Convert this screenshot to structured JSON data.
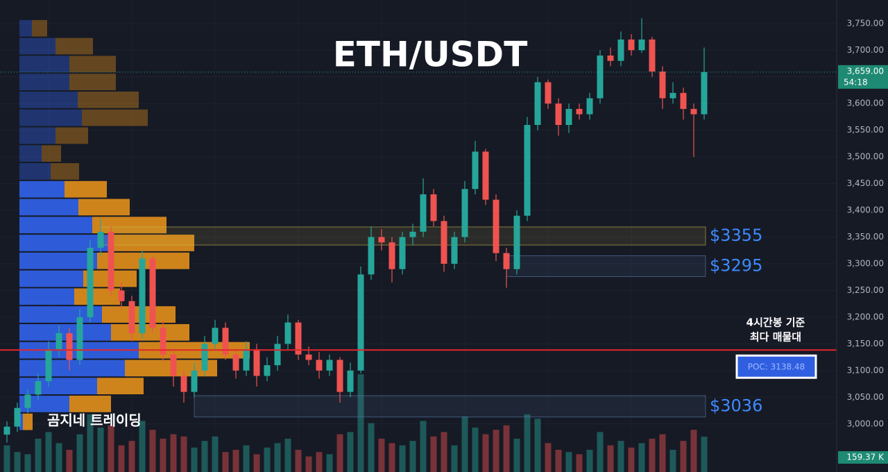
{
  "chart_data": {
    "type": "candlestick",
    "title": "ETH/USDT",
    "watermark": "곰지네 트레이딩",
    "annotation": [
      "4시간봉 기준",
      "최다 매물대"
    ],
    "ylim": [
      2910,
      3794
    ],
    "yticks": [
      {
        "value": 3000,
        "label": "3,000.00"
      },
      {
        "value": 3050,
        "label": "3,050.00"
      },
      {
        "value": 3100,
        "label": "3,100.00"
      },
      {
        "value": 3150,
        "label": "3,150.00"
      },
      {
        "value": 3200,
        "label": "3,200.00"
      },
      {
        "value": 3250,
        "label": "3,250.00"
      },
      {
        "value": 3300,
        "label": "3,300.00"
      },
      {
        "value": 3350,
        "label": "3,350.00"
      },
      {
        "value": 3400,
        "label": "3,400.00"
      },
      {
        "value": 3450,
        "label": "3,450.00"
      },
      {
        "value": 3500,
        "label": "3,500.00"
      },
      {
        "value": 3550,
        "label": "3,550.00"
      },
      {
        "value": 3600,
        "label": "3,600.00"
      },
      {
        "value": 3650,
        "label": "3,650.00"
      },
      {
        "value": 3700,
        "label": "3,700.00"
      },
      {
        "value": 3750,
        "label": "3,750.00"
      }
    ],
    "grid": true,
    "up_color": "#26a69a",
    "down_color": "#ef5350",
    "candles": [
      [
        2980,
        3005,
        2965,
        2995
      ],
      [
        2995,
        3040,
        2985,
        3030
      ],
      [
        3030,
        3065,
        3020,
        3055
      ],
      [
        3055,
        3095,
        3045,
        3080
      ],
      [
        3080,
        3155,
        3070,
        3140
      ],
      [
        3140,
        3185,
        3125,
        3170
      ],
      [
        3170,
        3180,
        3100,
        3120
      ],
      [
        3120,
        3215,
        3110,
        3200
      ],
      [
        3200,
        3345,
        3190,
        3330
      ],
      [
        3330,
        3385,
        3315,
        3360
      ],
      [
        3360,
        3370,
        3240,
        3250
      ],
      [
        3250,
        3265,
        3215,
        3230
      ],
      [
        3230,
        3240,
        3155,
        3170
      ],
      [
        3170,
        3325,
        3160,
        3310
      ],
      [
        3310,
        3315,
        3170,
        3180
      ],
      [
        3180,
        3195,
        3115,
        3130
      ],
      [
        3130,
        3140,
        3070,
        3090
      ],
      [
        3090,
        3100,
        3040,
        3060
      ],
      [
        3060,
        3115,
        3050,
        3100
      ],
      [
        3100,
        3165,
        3090,
        3150
      ],
      [
        3150,
        3195,
        3140,
        3180
      ],
      [
        3180,
        3190,
        3120,
        3130
      ],
      [
        3130,
        3140,
        3085,
        3100
      ],
      [
        3100,
        3155,
        3090,
        3140
      ],
      [
        3140,
        3150,
        3070,
        3090
      ],
      [
        3090,
        3125,
        3080,
        3110
      ],
      [
        3110,
        3165,
        3100,
        3150
      ],
      [
        3150,
        3205,
        3140,
        3190
      ],
      [
        3190,
        3195,
        3120,
        3130
      ],
      [
        3130,
        3145,
        3110,
        3120
      ],
      [
        3120,
        3135,
        3085,
        3100
      ],
      [
        3100,
        3130,
        3090,
        3120
      ],
      [
        3120,
        3125,
        3040,
        3060
      ],
      [
        3060,
        3115,
        3050,
        3100
      ],
      [
        3100,
        3295,
        3095,
        3280
      ],
      [
        3280,
        3370,
        3270,
        3350
      ],
      [
        3350,
        3365,
        3325,
        3340
      ],
      [
        3340,
        3350,
        3265,
        3290
      ],
      [
        3290,
        3360,
        3280,
        3350
      ],
      [
        3350,
        3375,
        3335,
        3360
      ],
      [
        3360,
        3460,
        3350,
        3430
      ],
      [
        3430,
        3440,
        3370,
        3380
      ],
      [
        3380,
        3390,
        3285,
        3300
      ],
      [
        3300,
        3360,
        3290,
        3350
      ],
      [
        3350,
        3455,
        3340,
        3440
      ],
      [
        3440,
        3530,
        3430,
        3510
      ],
      [
        3510,
        3515,
        3410,
        3420
      ],
      [
        3420,
        3430,
        3305,
        3320
      ],
      [
        3320,
        3330,
        3255,
        3290
      ],
      [
        3290,
        3400,
        3280,
        3390
      ],
      [
        3390,
        3575,
        3380,
        3560
      ],
      [
        3560,
        3650,
        3550,
        3640
      ],
      [
        3640,
        3645,
        3590,
        3600
      ],
      [
        3600,
        3610,
        3540,
        3560
      ],
      [
        3560,
        3600,
        3545,
        3590
      ],
      [
        3590,
        3600,
        3570,
        3580
      ],
      [
        3580,
        3620,
        3570,
        3610
      ],
      [
        3610,
        3700,
        3600,
        3690
      ],
      [
        3690,
        3705,
        3670,
        3680
      ],
      [
        3680,
        3735,
        3670,
        3720
      ],
      [
        3720,
        3730,
        3690,
        3700
      ],
      [
        3700,
        3760,
        3695,
        3720
      ],
      [
        3720,
        3725,
        3650,
        3660
      ],
      [
        3660,
        3670,
        3590,
        3610
      ],
      [
        3610,
        3640,
        3600,
        3620
      ],
      [
        3620,
        3630,
        3570,
        3590
      ],
      [
        3590,
        3600,
        3500,
        3580
      ],
      [
        3580,
        3705,
        3570,
        3659
      ]
    ],
    "volumes": [
      120,
      90,
      80,
      150,
      180,
      130,
      100,
      170,
      260,
      200,
      210,
      120,
      140,
      230,
      190,
      150,
      170,
      160,
      110,
      140,
      160,
      90,
      100,
      120,
      80,
      110,
      130,
      150,
      100,
      70,
      90,
      80,
      170,
      180,
      440,
      220,
      150,
      130,
      120,
      140,
      230,
      160,
      180,
      120,
      250,
      200,
      170,
      190,
      210,
      150,
      260,
      240,
      130,
      100,
      90,
      80,
      100,
      180,
      120,
      140,
      110,
      130,
      150,
      170,
      100,
      140,
      190,
      159.37
    ],
    "volume_ylim": [
      0,
      500
    ],
    "volume_label": {
      "value": 159.37,
      "label": "159.37 K"
    },
    "current_price": {
      "value": 3659,
      "label": "3,659.00"
    },
    "countdown": "54:18",
    "poc": {
      "value": 3138.48,
      "label": "POC: 3138.48"
    },
    "profile": [
      {
        "price": 3741,
        "buy": 18,
        "sell": 22
      },
      {
        "price": 3707.5,
        "buy": 52,
        "sell": 54
      },
      {
        "price": 3674,
        "buy": 72,
        "sell": 67
      },
      {
        "price": 3640.5,
        "buy": 72,
        "sell": 67
      },
      {
        "price": 3607,
        "buy": 84,
        "sell": 88
      },
      {
        "price": 3573.5,
        "buy": 90,
        "sell": 95
      },
      {
        "price": 3540,
        "buy": 52,
        "sell": 47
      },
      {
        "price": 3506.5,
        "buy": 32,
        "sell": 28
      },
      {
        "price": 3473,
        "buy": 45,
        "sell": 41
      },
      {
        "price": 3439.5,
        "buy": 65,
        "sell": 61
      },
      {
        "price": 3406,
        "buy": 85,
        "sell": 74
      },
      {
        "price": 3372.5,
        "buy": 105,
        "sell": 107
      },
      {
        "price": 3339,
        "buy": 132,
        "sell": 120
      },
      {
        "price": 3305.5,
        "buy": 112,
        "sell": 133
      },
      {
        "price": 3272,
        "buy": 92,
        "sell": 77
      },
      {
        "price": 3238.5,
        "buy": 79,
        "sell": 66
      },
      {
        "price": 3205,
        "buy": 119,
        "sell": 106
      },
      {
        "price": 3171.5,
        "buy": 132,
        "sell": 113
      },
      {
        "price": 3138,
        "buy": 172,
        "sell": 160
      },
      {
        "price": 3104.5,
        "buy": 152,
        "sell": 133
      },
      {
        "price": 3071,
        "buy": 112,
        "sell": 67
      },
      {
        "price": 3037.5,
        "buy": 72,
        "sell": 60
      },
      {
        "price": 3004,
        "buy": 5,
        "sell": 14
      }
    ],
    "value_area": {
      "low": 3004,
      "high": 3439.5
    },
    "zones": [
      {
        "label": "$3355",
        "low": 3335,
        "high": 3369,
        "start": 9,
        "color": "#c9b84a"
      },
      {
        "label": "$3295",
        "low": 3276,
        "high": 3315,
        "start": 48,
        "color": "#5a7fb0"
      },
      {
        "label": "$3036",
        "low": 3013,
        "high": 3053,
        "start": 18,
        "color": "#5a7fb0"
      }
    ]
  }
}
